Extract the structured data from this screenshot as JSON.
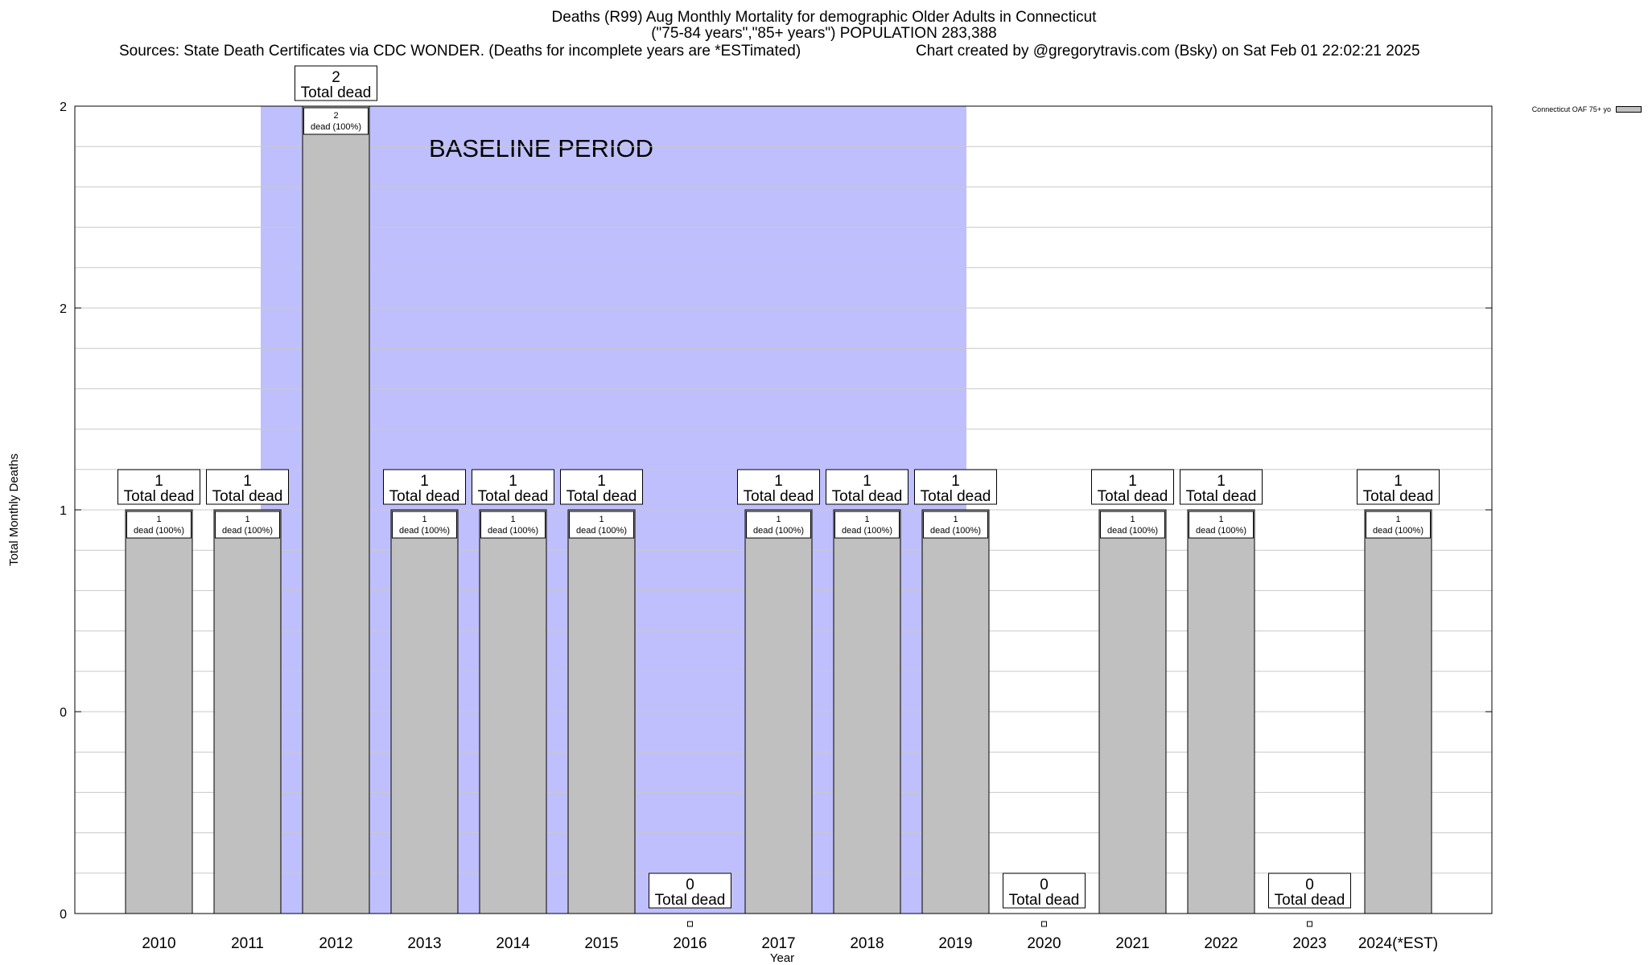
{
  "chart_data": {
    "type": "bar",
    "title": "Deaths (R99) Aug Monthly Mortality for demographic Older Adults in Connecticut",
    "subtitle": "(\"75-84 years\",\"85+ years\") POPULATION 283,388",
    "sources": "Sources: State Death Certificates via CDC WONDER. (Deaths for incomplete years are *ESTimated)",
    "credit": "Chart created by @gregorytravis.com (Bsky) on Sat Feb 01 22:02:21 2025",
    "xlabel": "Year",
    "ylabel": "Total Monthly Deaths",
    "categories": [
      "2010",
      "2011",
      "2012",
      "2013",
      "2014",
      "2015",
      "2016",
      "2017",
      "2018",
      "2019",
      "2020",
      "2021",
      "2022",
      "2023",
      "2024(*EST)"
    ],
    "series": [
      {
        "name": "Connecticut OAF 75+ yo",
        "values": [
          1,
          1,
          2,
          1,
          1,
          1,
          0,
          1,
          1,
          1,
          0,
          1,
          1,
          0,
          1
        ],
        "color": "#c0c0c0"
      }
    ],
    "y_tick_labels": [
      "0",
      "0",
      "1",
      "2",
      "2"
    ],
    "ylim": [
      0,
      2
    ],
    "grid": true,
    "baseline_period": {
      "label": "BASELINE PERIOD",
      "from": "2012",
      "to": "2019",
      "color": "#bfbffd"
    },
    "total_label_suffix": "Total dead",
    "bar_label_suffix": "dead (100%)",
    "legend_position": "top-right"
  }
}
